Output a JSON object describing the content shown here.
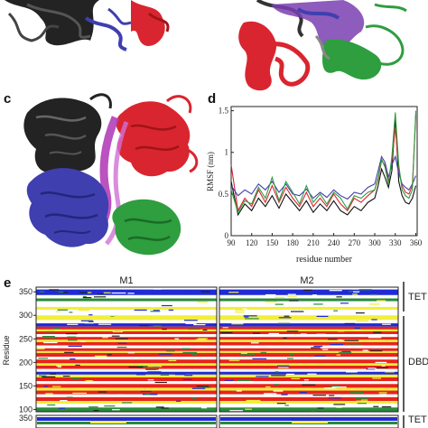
{
  "panels": {
    "c": {
      "label": "c"
    },
    "d": {
      "label": "d"
    },
    "e": {
      "label": "e"
    }
  },
  "structure_colors": {
    "chain_black": "#222222",
    "chain_red": "#d9252f",
    "chain_blue": "#3f3fb0",
    "chain_green": "#2e9e3e",
    "dna": "#b23fb8"
  },
  "chart_data": [
    {
      "type": "line",
      "panel": "d",
      "xlabel": "residue number",
      "ylabel": "RMSF (nm)",
      "xlim": [
        90,
        362
      ],
      "ylim": [
        0,
        1.55
      ],
      "xticks": [
        "90",
        "120",
        "150",
        "180",
        "210",
        "240",
        "270",
        "300",
        "330",
        "360"
      ],
      "yticks": [
        "0",
        "0.5",
        "1",
        "1.5"
      ],
      "grid": false,
      "x": [
        90,
        100,
        110,
        120,
        130,
        140,
        150,
        160,
        170,
        180,
        190,
        200,
        210,
        220,
        230,
        240,
        250,
        260,
        270,
        280,
        290,
        300,
        305,
        310,
        315,
        320,
        325,
        330,
        335,
        340,
        345,
        350,
        355,
        360
      ],
      "series": [
        {
          "color": "#111111",
          "values": [
            0.65,
            0.25,
            0.38,
            0.3,
            0.45,
            0.35,
            0.48,
            0.33,
            0.5,
            0.4,
            0.3,
            0.42,
            0.28,
            0.38,
            0.3,
            0.42,
            0.3,
            0.25,
            0.35,
            0.3,
            0.4,
            0.45,
            0.6,
            0.8,
            0.7,
            0.58,
            0.78,
            1.42,
            0.65,
            0.48,
            0.4,
            0.38,
            0.45,
            0.6
          ]
        },
        {
          "color": "#d9252f",
          "values": [
            0.85,
            0.3,
            0.45,
            0.35,
            0.55,
            0.4,
            0.6,
            0.4,
            0.58,
            0.45,
            0.35,
            0.52,
            0.35,
            0.45,
            0.35,
            0.5,
            0.38,
            0.3,
            0.45,
            0.4,
            0.48,
            0.55,
            0.68,
            0.9,
            0.85,
            0.65,
            0.9,
            1.3,
            0.8,
            0.6,
            0.52,
            0.5,
            0.6,
            1.45
          ]
        },
        {
          "color": "#3f3fb0",
          "values": [
            0.6,
            0.48,
            0.55,
            0.5,
            0.62,
            0.55,
            0.65,
            0.52,
            0.62,
            0.5,
            0.48,
            0.56,
            0.45,
            0.52,
            0.46,
            0.55,
            0.48,
            0.44,
            0.52,
            0.5,
            0.58,
            0.62,
            0.78,
            0.95,
            0.88,
            0.7,
            0.85,
            0.95,
            0.75,
            0.62,
            0.58,
            0.55,
            0.62,
            0.72
          ]
        },
        {
          "color": "#2e9e3e",
          "values": [
            0.55,
            0.28,
            0.42,
            0.38,
            0.58,
            0.45,
            0.7,
            0.42,
            0.65,
            0.52,
            0.38,
            0.6,
            0.4,
            0.5,
            0.38,
            0.52,
            0.45,
            0.32,
            0.48,
            0.45,
            0.52,
            0.55,
            0.7,
            0.92,
            0.82,
            0.62,
            0.95,
            1.48,
            0.85,
            0.55,
            0.48,
            0.45,
            0.55,
            1.5
          ]
        }
      ]
    },
    {
      "type": "heatmap",
      "panel": "e",
      "titles": [
        "M1",
        "M2"
      ],
      "ylabel": "Residue",
      "yticks": [
        "100",
        "150",
        "200",
        "250",
        "300",
        "350"
      ],
      "ylim": [
        95,
        360
      ],
      "region_labels": [
        "TET",
        "DBD"
      ],
      "bottom_partial_tick": "350",
      "bottom_partial_label": "TET",
      "colors": {
        "helix": "#1f2bd6",
        "strand": "#e8231c",
        "turn": "#f2ee3c",
        "bend": "#2a8a3a",
        "coil": "#ffffff",
        "bridge": "#222222"
      }
    }
  ]
}
